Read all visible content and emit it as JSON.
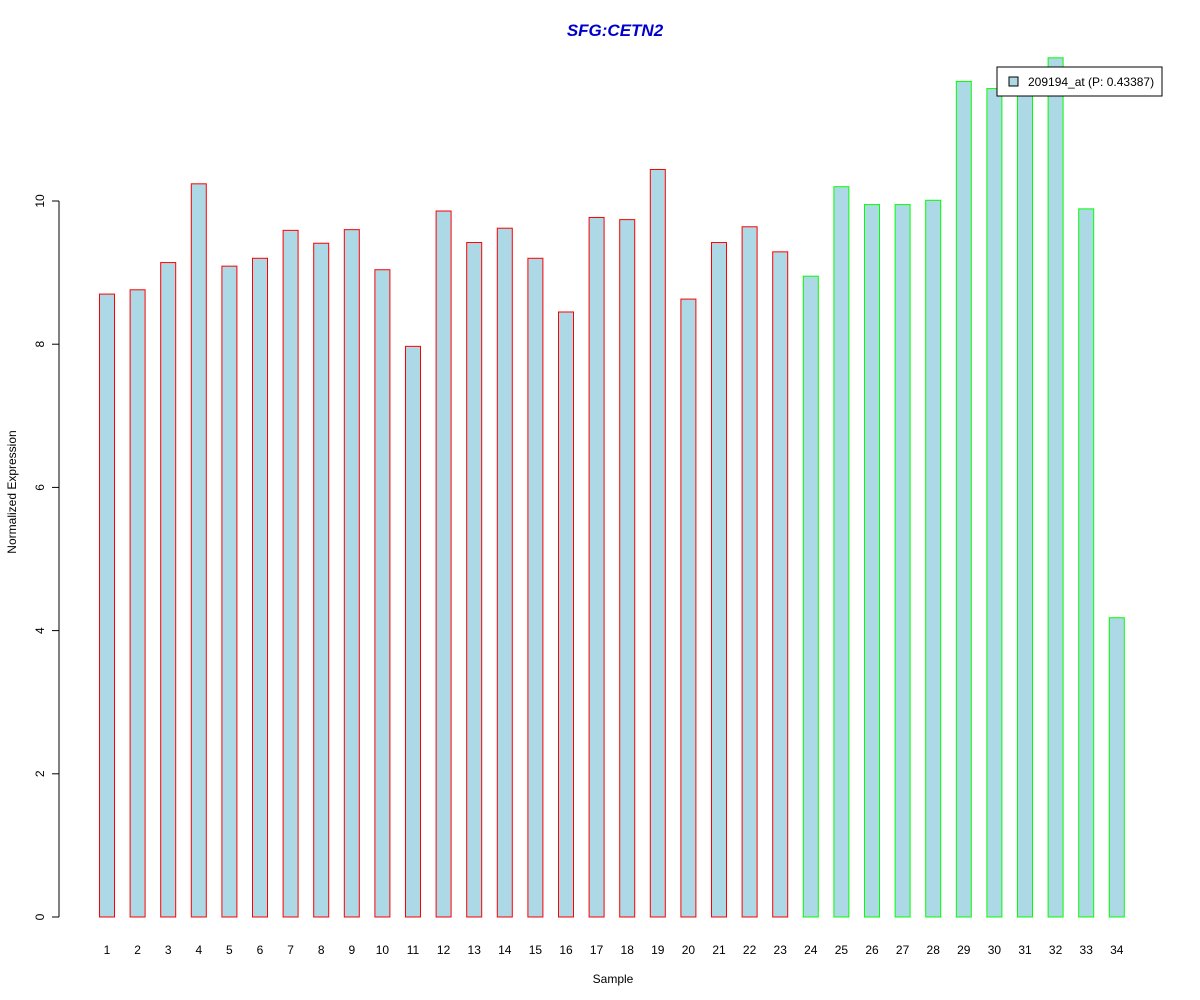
{
  "colors": {
    "background": "#ffffff",
    "bar_fill": "#add8e6",
    "group1_border": "#ff0000",
    "group2_border": "#00ff00",
    "title": "#0000cd",
    "axis": "#000000"
  },
  "chart_data": {
    "type": "bar",
    "title": "SFG:CETN2",
    "xlabel": "Sample",
    "ylabel": "Normalized Expression",
    "ylim": [
      0,
      12
    ],
    "yticks": [
      0,
      2,
      4,
      6,
      8,
      10
    ],
    "grid": false,
    "legend": {
      "placement": "top-right",
      "entries": [
        "209194_at (P: 0.43387)"
      ]
    },
    "categories": [
      "1",
      "2",
      "3",
      "4",
      "5",
      "6",
      "7",
      "8",
      "9",
      "10",
      "11",
      "12",
      "13",
      "14",
      "15",
      "16",
      "17",
      "18",
      "19",
      "20",
      "21",
      "22",
      "23",
      "24",
      "25",
      "26",
      "27",
      "28",
      "29",
      "30",
      "31",
      "32",
      "33",
      "34"
    ],
    "series": [
      {
        "name": "209194_at (P: 0.43387)",
        "values": [
          8.7,
          8.76,
          9.14,
          10.24,
          9.09,
          9.2,
          9.59,
          9.41,
          9.6,
          9.04,
          7.97,
          9.86,
          9.42,
          9.62,
          9.2,
          8.45,
          9.77,
          9.74,
          10.44,
          8.63,
          9.42,
          9.64,
          9.29,
          8.95,
          10.2,
          9.95,
          9.95,
          10.01,
          11.67,
          11.57,
          11.87,
          12.0,
          9.89,
          4.18
        ],
        "groups": [
          1,
          1,
          1,
          1,
          1,
          1,
          1,
          1,
          1,
          1,
          1,
          1,
          1,
          1,
          1,
          1,
          1,
          1,
          1,
          1,
          1,
          1,
          1,
          2,
          2,
          2,
          2,
          2,
          2,
          2,
          2,
          2,
          2,
          2
        ]
      }
    ]
  }
}
